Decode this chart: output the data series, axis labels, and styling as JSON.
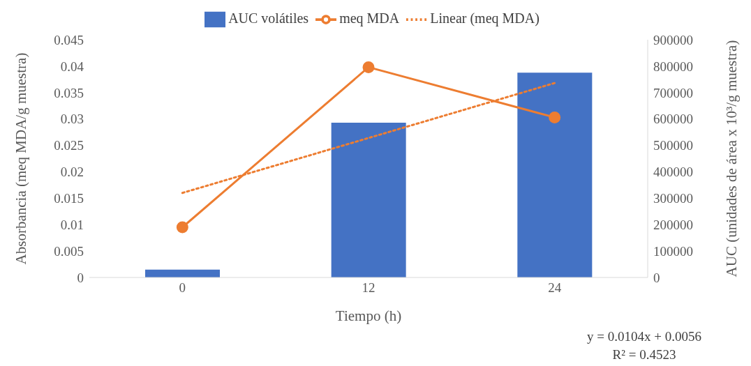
{
  "chart_data": {
    "type": "bar",
    "categories": [
      "0",
      "12",
      "24"
    ],
    "series": [
      {
        "name": "AUC volátiles",
        "axis": "y2",
        "color": "#4472c4",
        "values": [
          30000,
          586000,
          775000
        ]
      },
      {
        "name": "meq MDA",
        "type": "line",
        "color": "#ed7d31",
        "values": [
          0.0095,
          0.0398,
          0.0303
        ],
        "marker": "circle",
        "line_style": "solid"
      },
      {
        "name": "Linear (meq MDA)",
        "type": "line",
        "color": "#ed7d31",
        "values": [
          0.016,
          0.0264,
          0.0368
        ],
        "marker": "none",
        "line_style": "dotted"
      }
    ],
    "xlabel": "Tiempo (h)",
    "ylabel": "Absorbancia (meq MDA/g muestra)",
    "y2label": "AUC (unidades de área x 10³/g muestra)",
    "ylim": [
      0,
      0.045
    ],
    "yticks": [
      0,
      0.005,
      0.01,
      0.015,
      0.02,
      0.025,
      0.03,
      0.035,
      0.04,
      0.045
    ],
    "y2lim": [
      0,
      900000
    ],
    "y2ticks": [
      0,
      100000,
      200000,
      300000,
      400000,
      500000,
      600000,
      700000,
      800000,
      900000
    ],
    "annotations": [
      "y = 0.0104x + 0.0056",
      "R² = 0.4523"
    ],
    "legend": "top"
  }
}
